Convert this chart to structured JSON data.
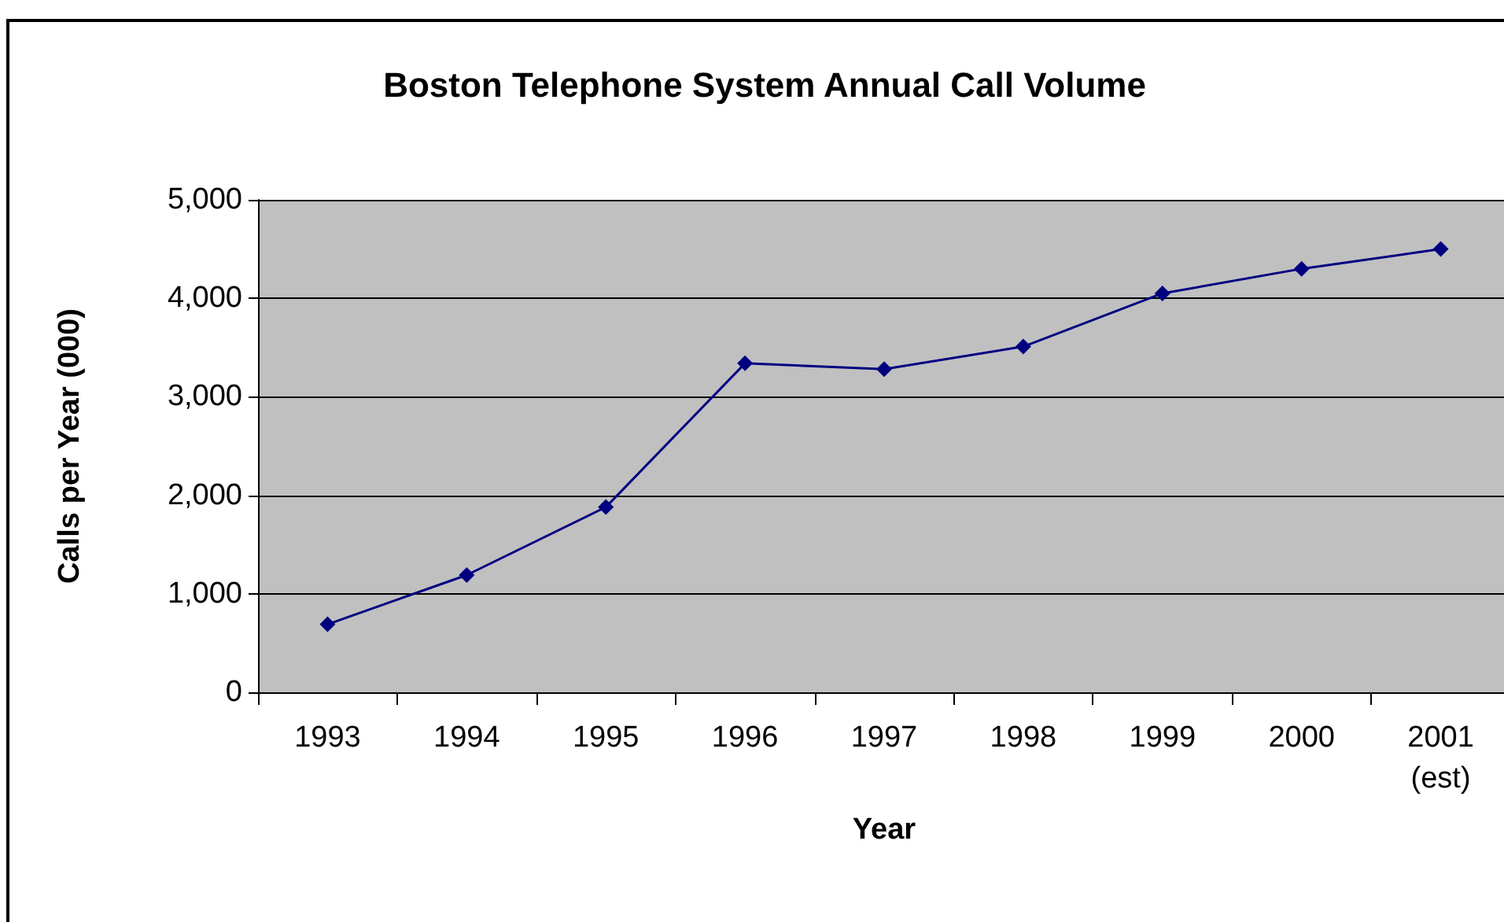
{
  "chart_data": {
    "type": "line",
    "title": "Boston Telephone System Annual Call Volume",
    "xlabel": "Year",
    "ylabel": "Calls per Year (000)",
    "categories": [
      "1993",
      "1994",
      "1995",
      "1996",
      "1997",
      "1998",
      "1999",
      "2000",
      "2001 (est)"
    ],
    "series": [
      {
        "color": "#000080",
        "values": [
          690,
          1190,
          1880,
          3340,
          3280,
          3510,
          4050,
          4300,
          4500
        ]
      }
    ],
    "ylim": [
      0,
      5000
    ],
    "yticks": [
      {
        "value": 0,
        "label": "0"
      },
      {
        "value": 1000,
        "label": "1,000"
      },
      {
        "value": 2000,
        "label": "2,000"
      },
      {
        "value": 3000,
        "label": "3,000"
      },
      {
        "value": 4000,
        "label": "4,000"
      },
      {
        "value": 5000,
        "label": "5,000"
      }
    ],
    "grid": "y",
    "marker": "diamond",
    "line_style": "solid"
  }
}
